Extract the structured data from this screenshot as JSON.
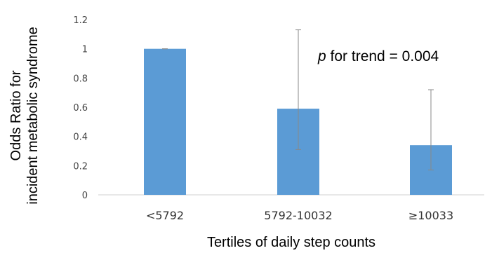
{
  "chart_data": {
    "type": "bar",
    "categories": [
      "<5792",
      "5792-10032",
      "≥10033"
    ],
    "values": [
      1.0,
      0.59,
      0.34
    ],
    "error_low": [
      1.0,
      0.31,
      0.17
    ],
    "error_high": [
      1.0,
      1.13,
      0.72
    ],
    "xlabel": "Tertiles of daily step counts",
    "ylabel_lines": [
      "Odds Ratio for",
      "incident metabolic syndrome"
    ],
    "ylim": [
      0,
      1.2
    ],
    "yticks": [
      "0",
      "0.2",
      "0.4",
      "0.6",
      "0.8",
      "1",
      "1.2"
    ],
    "annotation": {
      "italic": "p",
      "rest": " for trend = 0.004"
    },
    "bar_color": "#5b9bd5",
    "error_color": "#888888",
    "grid": false
  }
}
